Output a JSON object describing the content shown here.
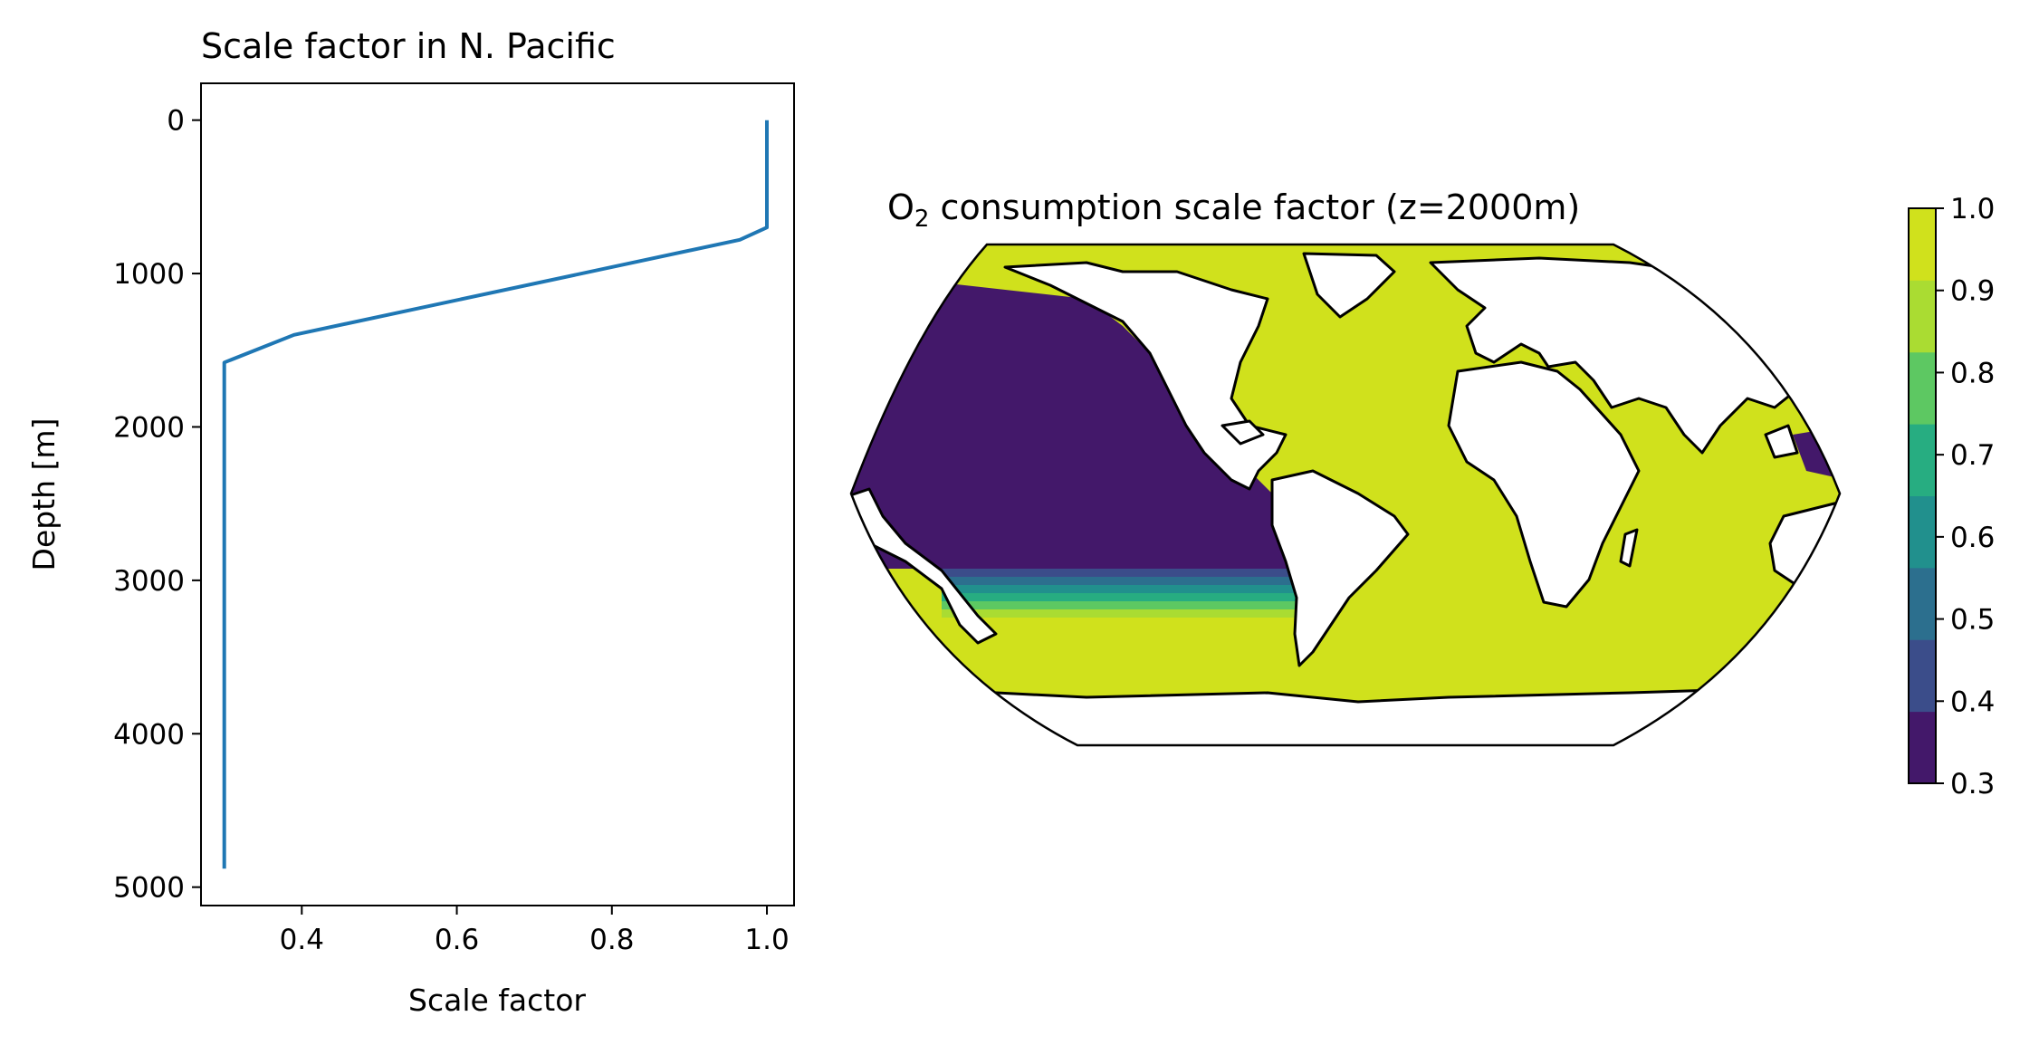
{
  "chart_data": [
    {
      "type": "line",
      "title": "Scale factor in N. Pacific",
      "xlabel": "Scale factor",
      "ylabel": "Depth [m]",
      "xlim": [
        0.27,
        1.035
      ],
      "ylim": [
        5120,
        -240
      ],
      "y_inverted": true,
      "xticks": [
        0.4,
        0.6,
        0.8,
        1.0
      ],
      "xtick_labels": [
        "0.4",
        "0.6",
        "0.8",
        "1.0"
      ],
      "yticks": [
        0,
        1000,
        2000,
        3000,
        4000,
        5000
      ],
      "ytick_labels": [
        "0",
        "1000",
        "2000",
        "3000",
        "4000",
        "5000"
      ],
      "series": [
        {
          "name": "scale factor",
          "color": "#1f77b4",
          "x": [
            1.0,
            1.0,
            0.965,
            0.39,
            0.3,
            0.3
          ],
          "y": [
            0,
            700,
            780,
            1400,
            1580,
            4880
          ]
        }
      ]
    },
    {
      "type": "heatmap",
      "title_main": "O",
      "title_sub": "2",
      "title_rest": " consumption scale factor (z=2000m)",
      "projection": "Robinson",
      "description_levels": [
        0.3,
        0.4,
        0.5,
        0.6,
        0.7,
        0.8,
        0.9,
        1.0
      ],
      "colorbar": {
        "ticks": [
          "0.3",
          "0.4",
          "0.5",
          "0.6",
          "0.7",
          "0.8",
          "0.9",
          "1.0"
        ],
        "colors": [
          "#43186a",
          "#3b4d8a",
          "#2c6f8e",
          "#21908d",
          "#27ad81",
          "#5dc862",
          "#aadc32",
          "#d0e11c"
        ]
      },
      "regions": {
        "north_pacific_value": 0.3,
        "transition_latitude_band": [
          "0.3 to 1.0"
        ],
        "elsewhere_value": 1.0,
        "land_color": "#ffffff",
        "coast_color": "#000000"
      }
    }
  ]
}
